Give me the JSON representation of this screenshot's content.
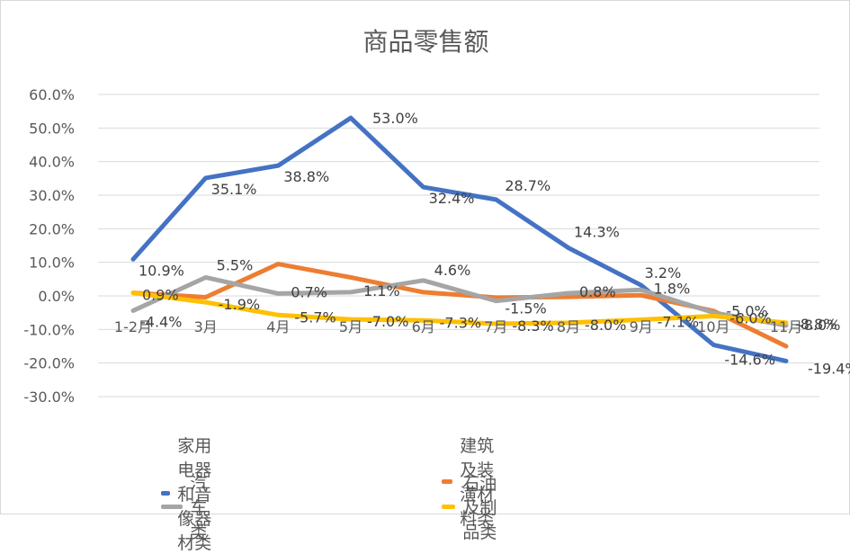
{
  "chart_data": {
    "type": "line",
    "title": "商品零售额",
    "categories": [
      "1-2月",
      "3月",
      "4月",
      "5月",
      "6月",
      "7月",
      "8月",
      "9月",
      "10月",
      "11月"
    ],
    "yticks": [
      "60.0%",
      "50.0%",
      "40.0%",
      "30.0%",
      "20.0%",
      "10.0%",
      "0.0%",
      "-10.0%",
      "-20.0%",
      "-30.0%"
    ],
    "ylim": [
      -30,
      60
    ],
    "grid": true,
    "legend_position": "bottom",
    "series": [
      {
        "name": "家用电器和音像器材类",
        "color": "#4472C4",
        "values": [
          10.9,
          35.1,
          38.8,
          53.0,
          32.4,
          28.7,
          14.3,
          3.2,
          -14.6,
          -19.4
        ],
        "labels": [
          "10.9%",
          "35.1%",
          "38.8%",
          "53.0%",
          "32.4%",
          "28.7%",
          "14.3%",
          "3.2%",
          "-14.6%",
          "-19.4%"
        ]
      },
      {
        "name": "建筑及装潢材料类",
        "color": "#ED7D31",
        "values": [
          0.9,
          -0.4,
          9.5,
          5.5,
          1.1,
          -0.5,
          -0.3,
          0.2,
          -4.5,
          -15.0
        ],
        "labels": []
      },
      {
        "name": "汽车类",
        "color": "#A5A5A5",
        "values": [
          -4.4,
          5.5,
          0.7,
          1.1,
          4.6,
          -1.5,
          0.8,
          1.8,
          -5.0,
          -8.8
        ],
        "labels": [
          "-4.4%",
          "5.5%",
          "0.7%",
          "1.1%",
          "4.6%",
          "-1.5%",
          "0.8%",
          "1.8%",
          "-5.0%",
          "-8.8%"
        ]
      },
      {
        "name": "石油及制品类",
        "color": "#FFC000",
        "values": [
          0.9,
          -1.9,
          -5.7,
          -7.0,
          -7.3,
          -8.3,
          -8.0,
          -7.1,
          -6.0,
          -8.0
        ],
        "labels": [
          "0.9%",
          "-1.9%",
          "-5.7%",
          "-7.0%",
          "-7.3%",
          "-8.3%",
          "-8.0%",
          "-7.1%",
          "-6.0%",
          "-8.0%"
        ]
      }
    ]
  }
}
